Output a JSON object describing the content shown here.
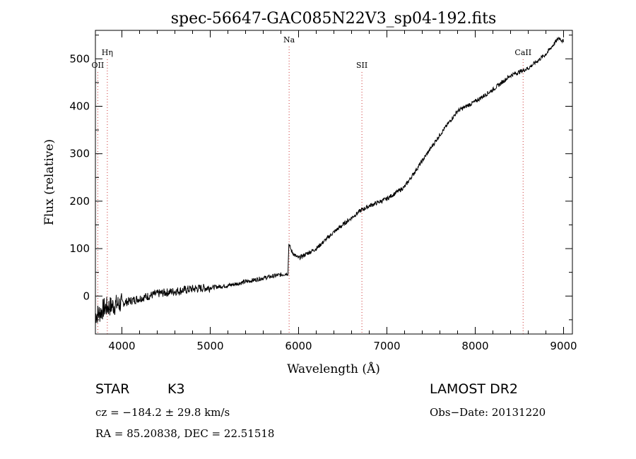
{
  "chart_data": {
    "type": "line",
    "title": "spec-56647-GAC085N22V3_sp04-192.fits",
    "xlabel": "Wavelength (Å)",
    "ylabel": "Flux (relative)",
    "xlim": [
      3700,
      9100
    ],
    "ylim": [
      -80,
      560
    ],
    "xticks": [
      4000,
      5000,
      6000,
      7000,
      8000,
      9000
    ],
    "yticks": [
      0,
      100,
      200,
      300,
      400,
      500
    ],
    "grid": false,
    "colors": {
      "spectrum": "#000000",
      "lines": "#cc3333"
    },
    "series": [
      {
        "x": [
          3700,
          3750,
          3800,
          3900,
          4000,
          4200,
          4400,
          4600,
          4800,
          5000,
          5200,
          5400,
          5600,
          5800,
          5880,
          5890,
          5920,
          5960,
          6000,
          6200,
          6400,
          6600,
          6700,
          6800,
          7000,
          7200,
          7400,
          7600,
          7800,
          8000,
          8200,
          8400,
          8600,
          8800,
          8950,
          9000
        ],
        "y": [
          -40,
          -35,
          -25,
          -20,
          -15,
          -5,
          5,
          10,
          15,
          18,
          22,
          30,
          38,
          45,
          48,
          110,
          95,
          85,
          80,
          100,
          135,
          165,
          180,
          190,
          205,
          230,
          285,
          340,
          390,
          410,
          435,
          465,
          480,
          510,
          545,
          535
        ]
      }
    ],
    "annotations": [
      {
        "label": "Hη",
        "x": 3835,
        "level": 1
      },
      {
        "label": "OII",
        "x": 3727,
        "level": 2
      },
      {
        "label": "Na",
        "x": 5893,
        "level": 0
      },
      {
        "label": "SII",
        "x": 6717,
        "level": 2
      },
      {
        "label": "CaII",
        "x": 8542,
        "level": 1
      }
    ]
  },
  "info": {
    "object_type": "STAR",
    "subclass": "K3",
    "survey": "LAMOST DR2",
    "cz": "cz = −184.2 ± 29.8 km/s",
    "obs_date": "Obs−Date: 20131220",
    "coords": "RA =  85.20838, DEC =  22.51518"
  }
}
